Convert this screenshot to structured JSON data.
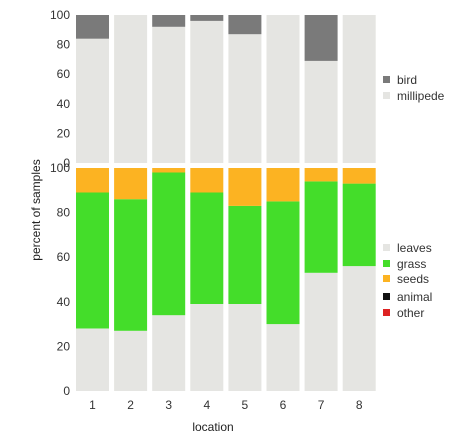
{
  "chart_data": [
    {
      "panel": "top",
      "type": "bar",
      "stacked": true,
      "categories": [
        "1",
        "2",
        "3",
        "4",
        "5",
        "6",
        "7",
        "8"
      ],
      "ylim": [
        0,
        100
      ],
      "yticks": [
        0,
        20,
        40,
        60,
        80,
        100
      ],
      "grid": false,
      "legend_position": "right",
      "series": [
        {
          "name": "millipede",
          "color": "#e5e5e2",
          "values": [
            84,
            100,
            92,
            96,
            87,
            100,
            69,
            100
          ]
        },
        {
          "name": "bird",
          "color": "#7a7a7a",
          "values": [
            16,
            0,
            8,
            4,
            13,
            0,
            31,
            0
          ]
        }
      ]
    },
    {
      "panel": "bottom",
      "type": "bar",
      "stacked": true,
      "categories": [
        "1",
        "2",
        "3",
        "4",
        "5",
        "6",
        "7",
        "8"
      ],
      "xlabel": "location",
      "ylabel": "percent of samples",
      "ylim": [
        0,
        100
      ],
      "yticks": [
        0,
        20,
        40,
        60,
        80,
        100
      ],
      "grid": false,
      "legend_position": "right",
      "series": [
        {
          "name": "leaves",
          "color": "#e5e5e2",
          "values": [
            28,
            27,
            34,
            39,
            39,
            30,
            53,
            56
          ]
        },
        {
          "name": "grass",
          "color": "#44dd2a",
          "values": [
            61,
            59,
            64,
            50,
            44,
            55,
            41,
            37
          ]
        },
        {
          "name": "seeds",
          "color": "#fcb322",
          "values": [
            14,
            15,
            2,
            12,
            17,
            16,
            6,
            7
          ]
        },
        {
          "name": "animal",
          "color": "#111111",
          "values": [
            1,
            1,
            1,
            2,
            2,
            1,
            3,
            3
          ]
        },
        {
          "name": "other",
          "color": "#dd2222",
          "values": [
            0,
            1,
            0,
            0,
            0,
            0,
            0,
            0
          ]
        }
      ]
    }
  ]
}
